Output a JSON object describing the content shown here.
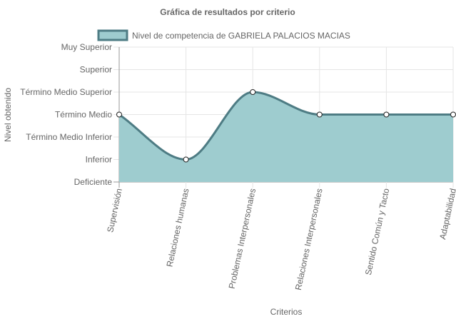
{
  "chart_data": {
    "type": "area",
    "title": "Gráfica de resultados por criterio",
    "xlabel": "Criterios",
    "ylabel": "Nivel obtenido",
    "y_levels": [
      "Deficiente",
      "Inferior",
      "Término Medio Inferior",
      "Término Medio",
      "Término Medio Superior",
      "Superior",
      "Muy Superior"
    ],
    "ylim": [
      0,
      6
    ],
    "categories": [
      "Supervisión",
      "Relaciones humanas",
      "Problemas Interpersonales",
      "Relaciones Interpersonales",
      "Sentido Común y Tacto",
      "Adaptabilidad"
    ],
    "series": [
      {
        "name": "Nivel de competencia de GABRIELA PALACIOS MACIAS",
        "values": [
          3,
          1,
          4,
          3,
          3,
          3
        ],
        "level_labels": [
          "Término Medio",
          "Inferior",
          "Término Medio Superior",
          "Término Medio",
          "Término Medio",
          "Término Medio"
        ],
        "fill_color": "#9ecccf",
        "line_color": "#4e7c84"
      }
    ],
    "grid": true,
    "legend_position": "top"
  }
}
